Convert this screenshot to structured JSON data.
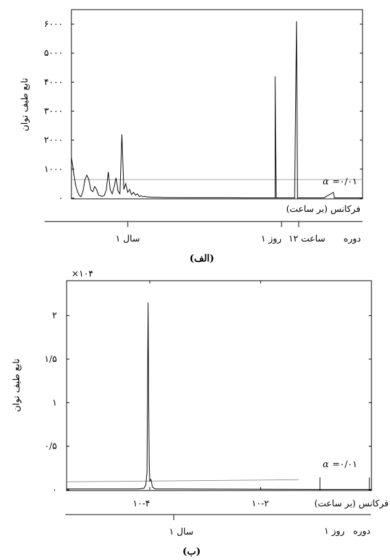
{
  "chart_data": [
    {
      "panel": "الف",
      "type": "line",
      "caption": "(الف)",
      "ylabel": "تابع طیف توان",
      "xlabel": "فرکانس (بر ساعت)",
      "x_scale": "linear",
      "ylim": [
        0,
        6500
      ],
      "yticks": [
        0,
        1000,
        2000,
        3000,
        4000,
        5000,
        6000
      ],
      "ytick_labels": [
        "۰",
        "۱۰۰۰",
        "۲۰۰۰",
        "۳۰۰۰",
        "۴۰۰۰",
        "۵۰۰۰",
        "۶۰۰۰"
      ],
      "significance": {
        "label_alpha": "α",
        "label_value": "=۰/۰۱",
        "y": 640
      },
      "period_label": "دوره",
      "period_marks": [
        {
          "label": "۱ سال",
          "at": "yearly"
        },
        {
          "label": "۱۲ ساعت",
          "at": "12-hour"
        },
        {
          "label": "۱ روز",
          "at": "daily"
        }
      ],
      "series": [
        {
          "x_unit": "index",
          "points": [
            [
              0,
              1400
            ],
            [
              2,
              950
            ],
            [
              4,
              500
            ],
            [
              6,
              250
            ],
            [
              8,
              100
            ],
            [
              10,
              50
            ],
            [
              12,
              250
            ],
            [
              14,
              650
            ],
            [
              16,
              790
            ],
            [
              18,
              640
            ],
            [
              20,
              280
            ],
            [
              22,
              220
            ],
            [
              24,
              400
            ],
            [
              26,
              300
            ],
            [
              28,
              100
            ],
            [
              30,
              80
            ],
            [
              32,
              60
            ],
            [
              34,
              100
            ],
            [
              36,
              300
            ],
            [
              38,
              900
            ],
            [
              40,
              300
            ],
            [
              42,
              150
            ],
            [
              44,
              400
            ],
            [
              46,
              700
            ],
            [
              48,
              250
            ],
            [
              50,
              150
            ],
            [
              52,
              2200
            ],
            [
              54,
              300
            ],
            [
              56,
              500
            ],
            [
              58,
              200
            ],
            [
              60,
              300
            ],
            [
              62,
              120
            ],
            [
              64,
              200
            ],
            [
              66,
              100
            ],
            [
              68,
              150
            ],
            [
              70,
              60
            ],
            [
              72,
              80
            ],
            [
              74,
              50
            ],
            [
              76,
              60
            ],
            [
              78,
              40
            ],
            [
              80,
              40
            ],
            [
              84,
              30
            ],
            [
              88,
              30
            ],
            [
              92,
              25
            ],
            [
              96,
              20
            ],
            [
              100,
              20
            ],
            [
              120,
              15
            ],
            [
              140,
              15
            ],
            [
              160,
              15
            ],
            [
              180,
              10
            ],
            [
              200,
              10
            ],
            [
              210,
              10
            ],
            [
              210,
              4200
            ],
            [
              211,
              10
            ],
            [
              230,
              10
            ],
            [
              232,
              6100
            ],
            [
              233,
              10
            ],
            [
              260,
              10
            ],
            [
              270,
              200
            ],
            [
              271,
              10
            ],
            [
              300,
              10
            ]
          ]
        }
      ]
    },
    {
      "panel": "ب",
      "type": "line",
      "caption": "(ب)",
      "ylabel": "تابع طیف توان",
      "xlabel": "فرکانس (بر ساعت)",
      "x_scale": "log",
      "multiplier_label": "×۱۰۴",
      "ylim": [
        0,
        2.4
      ],
      "yticks": [
        0,
        0.5,
        1,
        1.5,
        2
      ],
      "ytick_labels": [
        "۰",
        "۰/۵",
        "۱",
        "۱/۵",
        "۲"
      ],
      "xticks": [
        {
          "label": "۱۰-۴",
          "value": -4
        },
        {
          "label": "۱۰-۲",
          "value": -2
        }
      ],
      "significance": {
        "label_alpha": "α",
        "label_value": "=۰/۰۱",
        "y": 0.1
      },
      "period_label": "دوره",
      "period_marks": [
        {
          "label": "۱ سال",
          "at": "yearly"
        },
        {
          "label": "۱ روز",
          "at": "daily"
        }
      ],
      "series": [
        {
          "x_unit": "log10_freq",
          "points": [
            [
              -5.5,
              0.01
            ],
            [
              -4.2,
              0.01
            ],
            [
              -4.1,
              0.02
            ],
            [
              -4.07,
              0.06
            ],
            [
              -4.05,
              0.2
            ],
            [
              -4.04,
              1.2
            ],
            [
              -4.03,
              2.15
            ],
            [
              -4.02,
              1.0
            ],
            [
              -4.01,
              0.3
            ],
            [
              -4.0,
              0.1
            ],
            [
              -3.98,
              0.12
            ],
            [
              -3.95,
              0.03
            ],
            [
              -3.9,
              0.01
            ],
            [
              -1.0,
              0.005
            ],
            [
              -0.5,
              0.005
            ],
            [
              0,
              0.005
            ]
          ]
        }
      ]
    }
  ]
}
